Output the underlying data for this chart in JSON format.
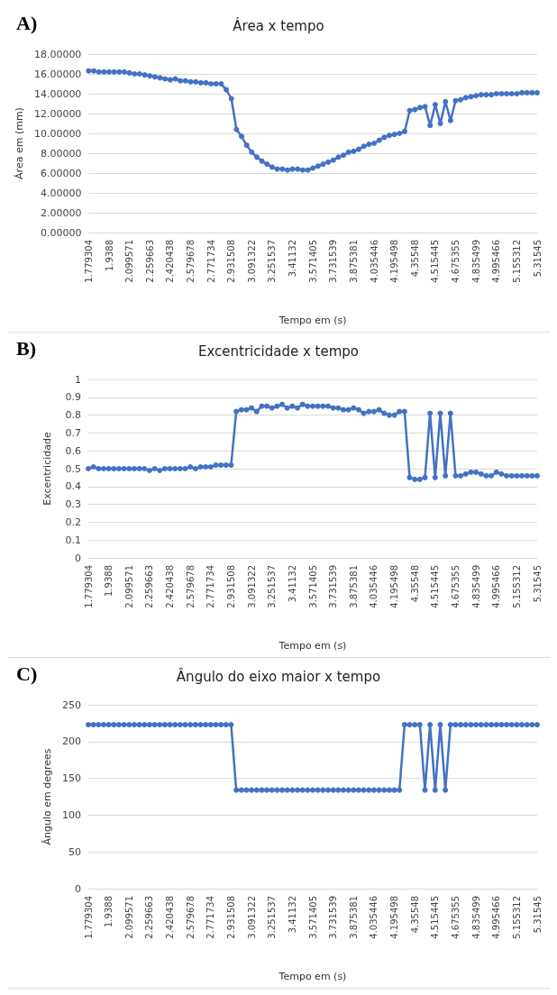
{
  "chart_data": [
    {
      "type": "line",
      "title": "Área x tempo",
      "xlabel": "Tempo em (s)",
      "ylabel": "Área em (mm)",
      "annotations": [
        "A)"
      ],
      "grid": "y",
      "marker": "circle",
      "line_style": "solid",
      "categories": [
        "1.779304",
        null,
        null,
        null,
        "1.9388",
        null,
        null,
        null,
        "2.099571",
        null,
        null,
        null,
        "2.259663",
        null,
        null,
        null,
        "2.420438",
        null,
        null,
        null,
        "2.579678",
        null,
        null,
        null,
        "2.771734",
        null,
        null,
        null,
        "2.931508",
        null,
        null,
        null,
        "3.091322",
        null,
        null,
        null,
        "3.251537",
        null,
        null,
        null,
        "3.41132",
        null,
        null,
        null,
        "3.571405",
        null,
        null,
        null,
        "3.731539",
        null,
        null,
        null,
        "3.875381",
        null,
        null,
        null,
        "4.035446",
        null,
        null,
        null,
        "4.195498",
        null,
        null,
        null,
        "4.35548",
        null,
        null,
        null,
        "4.515445",
        null,
        null,
        null,
        "4.675355",
        null,
        null,
        null,
        "4.835499",
        null,
        null,
        null,
        "4.995466",
        null,
        null,
        null,
        "5.155312",
        null,
        null,
        null,
        "5.31545"
      ],
      "ylim": [
        0,
        18
      ],
      "yticks": [
        {
          "value": 0,
          "label": "0.00000"
        },
        {
          "value": 2,
          "label": "2.00000"
        },
        {
          "value": 4,
          "label": "4.00000"
        },
        {
          "value": 6,
          "label": "6.00000"
        },
        {
          "value": 8,
          "label": "8.00000"
        },
        {
          "value": 10,
          "label": "10.00000"
        },
        {
          "value": 12,
          "label": "12.00000"
        },
        {
          "value": 14,
          "label": "14.00000"
        },
        {
          "value": 16,
          "label": "16.00000"
        },
        {
          "value": 18,
          "label": "18.00000"
        }
      ],
      "series": [
        {
          "color": "#4472c4",
          "values": [
            16.3,
            16.3,
            16.2,
            16.2,
            16.2,
            16.2,
            16.2,
            16.2,
            16.1,
            16.0,
            16.0,
            15.9,
            15.8,
            15.7,
            15.6,
            15.5,
            15.4,
            15.5,
            15.3,
            15.3,
            15.2,
            15.2,
            15.1,
            15.1,
            15.0,
            15.0,
            15.0,
            14.4,
            13.5,
            10.4,
            9.7,
            8.8,
            8.1,
            7.6,
            7.2,
            6.9,
            6.6,
            6.4,
            6.4,
            6.3,
            6.4,
            6.4,
            6.3,
            6.3,
            6.5,
            6.7,
            6.9,
            7.1,
            7.3,
            7.6,
            7.8,
            8.1,
            8.2,
            8.4,
            8.7,
            8.9,
            9.0,
            9.3,
            9.6,
            9.8,
            9.9,
            10.0,
            10.2,
            12.3,
            12.4,
            12.6,
            12.7,
            10.8,
            12.9,
            11.0,
            13.2,
            11.3,
            13.3,
            13.4,
            13.6,
            13.7,
            13.8,
            13.9,
            13.9,
            13.9,
            14.0,
            14.0,
            14.0,
            14.0,
            14.0,
            14.1,
            14.1,
            14.1,
            14.1
          ]
        }
      ]
    },
    {
      "type": "line",
      "title": "Excentricidade x tempo",
      "xlabel": "Tempo em (s)",
      "ylabel": "Excentricidade",
      "annotations": [
        "B)"
      ],
      "grid": "y",
      "marker": "circle",
      "line_style": "solid",
      "categories": [
        "1.779304",
        null,
        null,
        null,
        "1.9388",
        null,
        null,
        null,
        "2.099571",
        null,
        null,
        null,
        "2.259663",
        null,
        null,
        null,
        "2.420438",
        null,
        null,
        null,
        "2.579678",
        null,
        null,
        null,
        "2.771734",
        null,
        null,
        null,
        "2.931508",
        null,
        null,
        null,
        "3.091322",
        null,
        null,
        null,
        "3.251537",
        null,
        null,
        null,
        "3.41132",
        null,
        null,
        null,
        "3.571405",
        null,
        null,
        null,
        "3.731539",
        null,
        null,
        null,
        "3.875381",
        null,
        null,
        null,
        "4.035446",
        null,
        null,
        null,
        "4.195498",
        null,
        null,
        null,
        "4.35548",
        null,
        null,
        null,
        "4.515445",
        null,
        null,
        null,
        "4.675355",
        null,
        null,
        null,
        "4.835499",
        null,
        null,
        null,
        "4.995466",
        null,
        null,
        null,
        "5.155312",
        null,
        null,
        null,
        "5.31545"
      ],
      "ylim": [
        0,
        1
      ],
      "yticks": [
        0,
        0.1,
        0.2,
        0.3,
        0.4,
        0.5,
        0.6,
        0.7,
        0.8,
        0.9,
        1
      ],
      "series": [
        {
          "color": "#4472c4",
          "values": [
            0.5,
            0.51,
            0.5,
            0.5,
            0.5,
            0.5,
            0.5,
            0.5,
            0.5,
            0.5,
            0.5,
            0.5,
            0.49,
            0.5,
            0.49,
            0.5,
            0.5,
            0.5,
            0.5,
            0.5,
            0.51,
            0.5,
            0.51,
            0.51,
            0.51,
            0.52,
            0.52,
            0.52,
            0.52,
            0.82,
            0.83,
            0.83,
            0.84,
            0.82,
            0.85,
            0.85,
            0.84,
            0.85,
            0.86,
            0.84,
            0.85,
            0.84,
            0.86,
            0.85,
            0.85,
            0.85,
            0.85,
            0.85,
            0.84,
            0.84,
            0.83,
            0.83,
            0.84,
            0.83,
            0.81,
            0.82,
            0.82,
            0.83,
            0.81,
            0.8,
            0.8,
            0.82,
            0.82,
            0.45,
            0.44,
            0.44,
            0.45,
            0.81,
            0.45,
            0.81,
            0.46,
            0.81,
            0.46,
            0.46,
            0.47,
            0.48,
            0.48,
            0.47,
            0.46,
            0.46,
            0.48,
            0.47,
            0.46,
            0.46,
            0.46,
            0.46,
            0.46,
            0.46,
            0.46
          ]
        }
      ]
    },
    {
      "type": "line",
      "title": "Ângulo do eixo maior x tempo",
      "xlabel": "Tempo em (s)",
      "ylabel": "Ângulo em degrees",
      "annotations": [
        "C)"
      ],
      "grid": "y",
      "marker": "circle",
      "line_style": "solid",
      "categories": [
        "1.779304",
        null,
        null,
        null,
        "1.9388",
        null,
        null,
        null,
        "2.099571",
        null,
        null,
        null,
        "2.259663",
        null,
        null,
        null,
        "2.420438",
        null,
        null,
        null,
        "2.579678",
        null,
        null,
        null,
        "2.771734",
        null,
        null,
        null,
        "2.931508",
        null,
        null,
        null,
        "3.091322",
        null,
        null,
        null,
        "3.251537",
        null,
        null,
        null,
        "3.41132",
        null,
        null,
        null,
        "3.571405",
        null,
        null,
        null,
        "3.731539",
        null,
        null,
        null,
        "3.875381",
        null,
        null,
        null,
        "4.035446",
        null,
        null,
        null,
        "4.195498",
        null,
        null,
        null,
        "4.35548",
        null,
        null,
        null,
        "4.515445",
        null,
        null,
        null,
        "4.675355",
        null,
        null,
        null,
        "4.835499",
        null,
        null,
        null,
        "4.995466",
        null,
        null,
        null,
        "5.155312",
        null,
        null,
        null,
        "5.31545"
      ],
      "ylim": [
        0,
        250
      ],
      "yticks": [
        0,
        50,
        100,
        150,
        200,
        250
      ],
      "series": [
        {
          "color": "#4472c4",
          "values": [
            223,
            223,
            223,
            223,
            223,
            223,
            223,
            223,
            223,
            223,
            223,
            223,
            223,
            223,
            223,
            223,
            223,
            223,
            223,
            223,
            223,
            223,
            223,
            223,
            223,
            223,
            223,
            223,
            223,
            134,
            134,
            134,
            134,
            134,
            134,
            134,
            134,
            134,
            134,
            134,
            134,
            134,
            134,
            134,
            134,
            134,
            134,
            134,
            134,
            134,
            134,
            134,
            134,
            134,
            134,
            134,
            134,
            134,
            134,
            134,
            134,
            134,
            223,
            223,
            223,
            223,
            134,
            223,
            134,
            223,
            134,
            223,
            223,
            223,
            223,
            223,
            223,
            223,
            223,
            223,
            223,
            223,
            223,
            223,
            223,
            223,
            223,
            223,
            223
          ]
        }
      ]
    }
  ]
}
